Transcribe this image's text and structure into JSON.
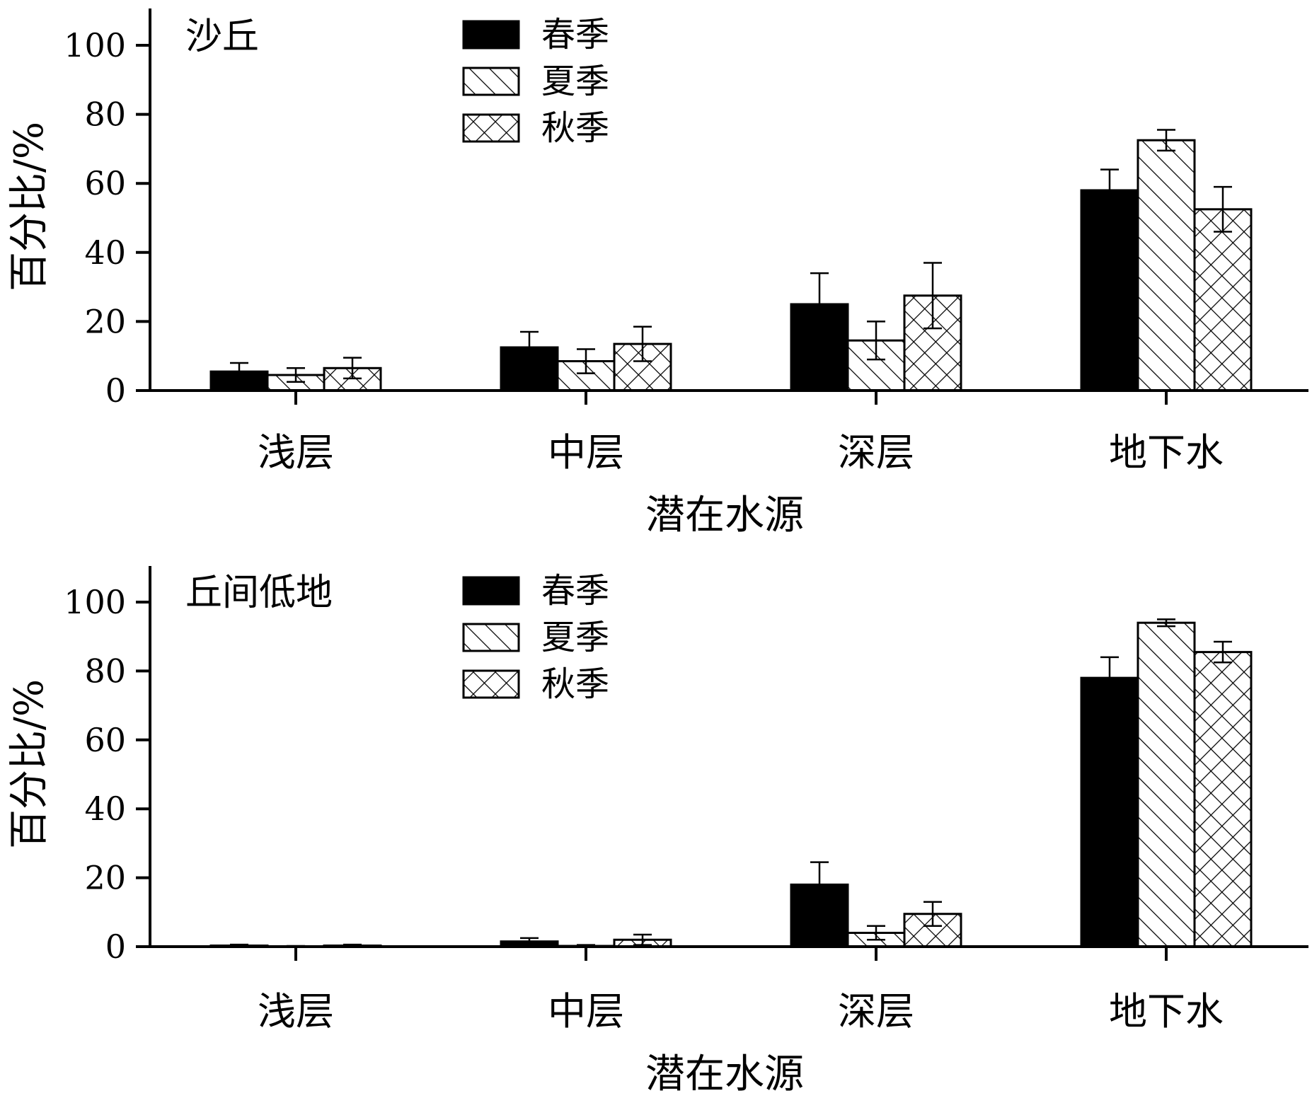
{
  "chart_data": [
    {
      "type": "bar",
      "panel_label": "沙丘",
      "categories": [
        "浅层",
        "中层",
        "深层",
        "地下水"
      ],
      "series": [
        {
          "name": "春季",
          "values": [
            5.5,
            12.5,
            25,
            58
          ],
          "errors": [
            2.5,
            4.5,
            9,
            6
          ]
        },
        {
          "name": "夏季",
          "values": [
            4.5,
            8.5,
            14.5,
            72.5
          ],
          "errors": [
            2,
            3.5,
            5.5,
            3
          ]
        },
        {
          "name": "秋季",
          "values": [
            6.5,
            13.5,
            27.5,
            52.5
          ],
          "errors": [
            3,
            5,
            9.5,
            6.5
          ]
        }
      ],
      "xlabel": "潜在水源",
      "ylabel": "百分比/%",
      "ylim": [
        0,
        110
      ],
      "yticks": [
        "0",
        "20",
        "40",
        "60",
        "80",
        "100"
      ],
      "legend_position": "top-center"
    },
    {
      "type": "bar",
      "panel_label": "丘间低地",
      "categories": [
        "浅层",
        "中层",
        "深层",
        "地下水"
      ],
      "series": [
        {
          "name": "春季",
          "values": [
            0.3,
            1.5,
            18,
            78
          ],
          "errors": [
            0.3,
            1,
            6.5,
            6
          ]
        },
        {
          "name": "夏季",
          "values": [
            0.1,
            0.2,
            4,
            94
          ],
          "errors": [
            0.1,
            0.3,
            2,
            1
          ]
        },
        {
          "name": "秋季",
          "values": [
            0.3,
            2,
            9.5,
            85.5
          ],
          "errors": [
            0.3,
            1.5,
            3.5,
            3
          ]
        }
      ],
      "xlabel": "潜在水源",
      "ylabel": "百分比/%",
      "ylim": [
        0,
        110
      ],
      "yticks": [
        "0",
        "20",
        "40",
        "60",
        "80",
        "100"
      ],
      "legend_position": "top-center"
    }
  ]
}
